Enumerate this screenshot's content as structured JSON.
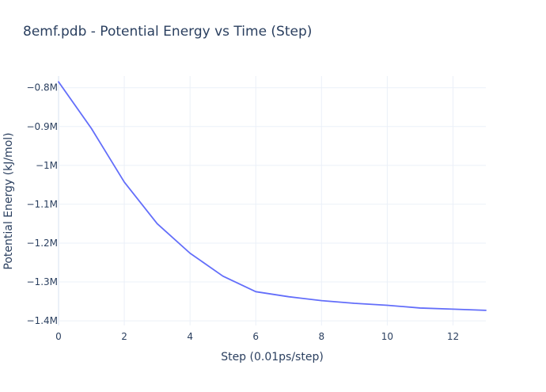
{
  "chart_data": {
    "type": "line",
    "title": "8emf.pdb - Potential Energy vs Time (Step)",
    "xlabel": "Step (0.01ps/step)",
    "ylabel": "Potential Energy (kJ/mol)",
    "xlim": [
      0,
      13
    ],
    "ylim": [
      -1412000,
      -770000
    ],
    "x_ticks": [
      0,
      2,
      4,
      6,
      8,
      10,
      12
    ],
    "x_tick_labels": [
      "0",
      "2",
      "4",
      "6",
      "8",
      "10",
      "12"
    ],
    "y_ticks": [
      -800000,
      -900000,
      -1000000,
      -1100000,
      -1200000,
      -1300000,
      -1400000
    ],
    "y_tick_labels": [
      "−0.8M",
      "−0.9M",
      "−1M",
      "−1.1M",
      "−1.2M",
      "−1.3M",
      "−1.4M"
    ],
    "grid": true,
    "series": [
      {
        "color": "#636efa",
        "x": [
          0,
          1,
          2,
          3,
          4,
          5,
          6,
          7,
          8,
          9,
          10,
          11,
          12,
          13
        ],
        "y": [
          -785000,
          -905000,
          -1043000,
          -1150000,
          -1226000,
          -1285000,
          -1325000,
          -1338000,
          -1348000,
          -1355000,
          -1360000,
          -1367000,
          -1370000,
          -1373000
        ]
      }
    ]
  }
}
